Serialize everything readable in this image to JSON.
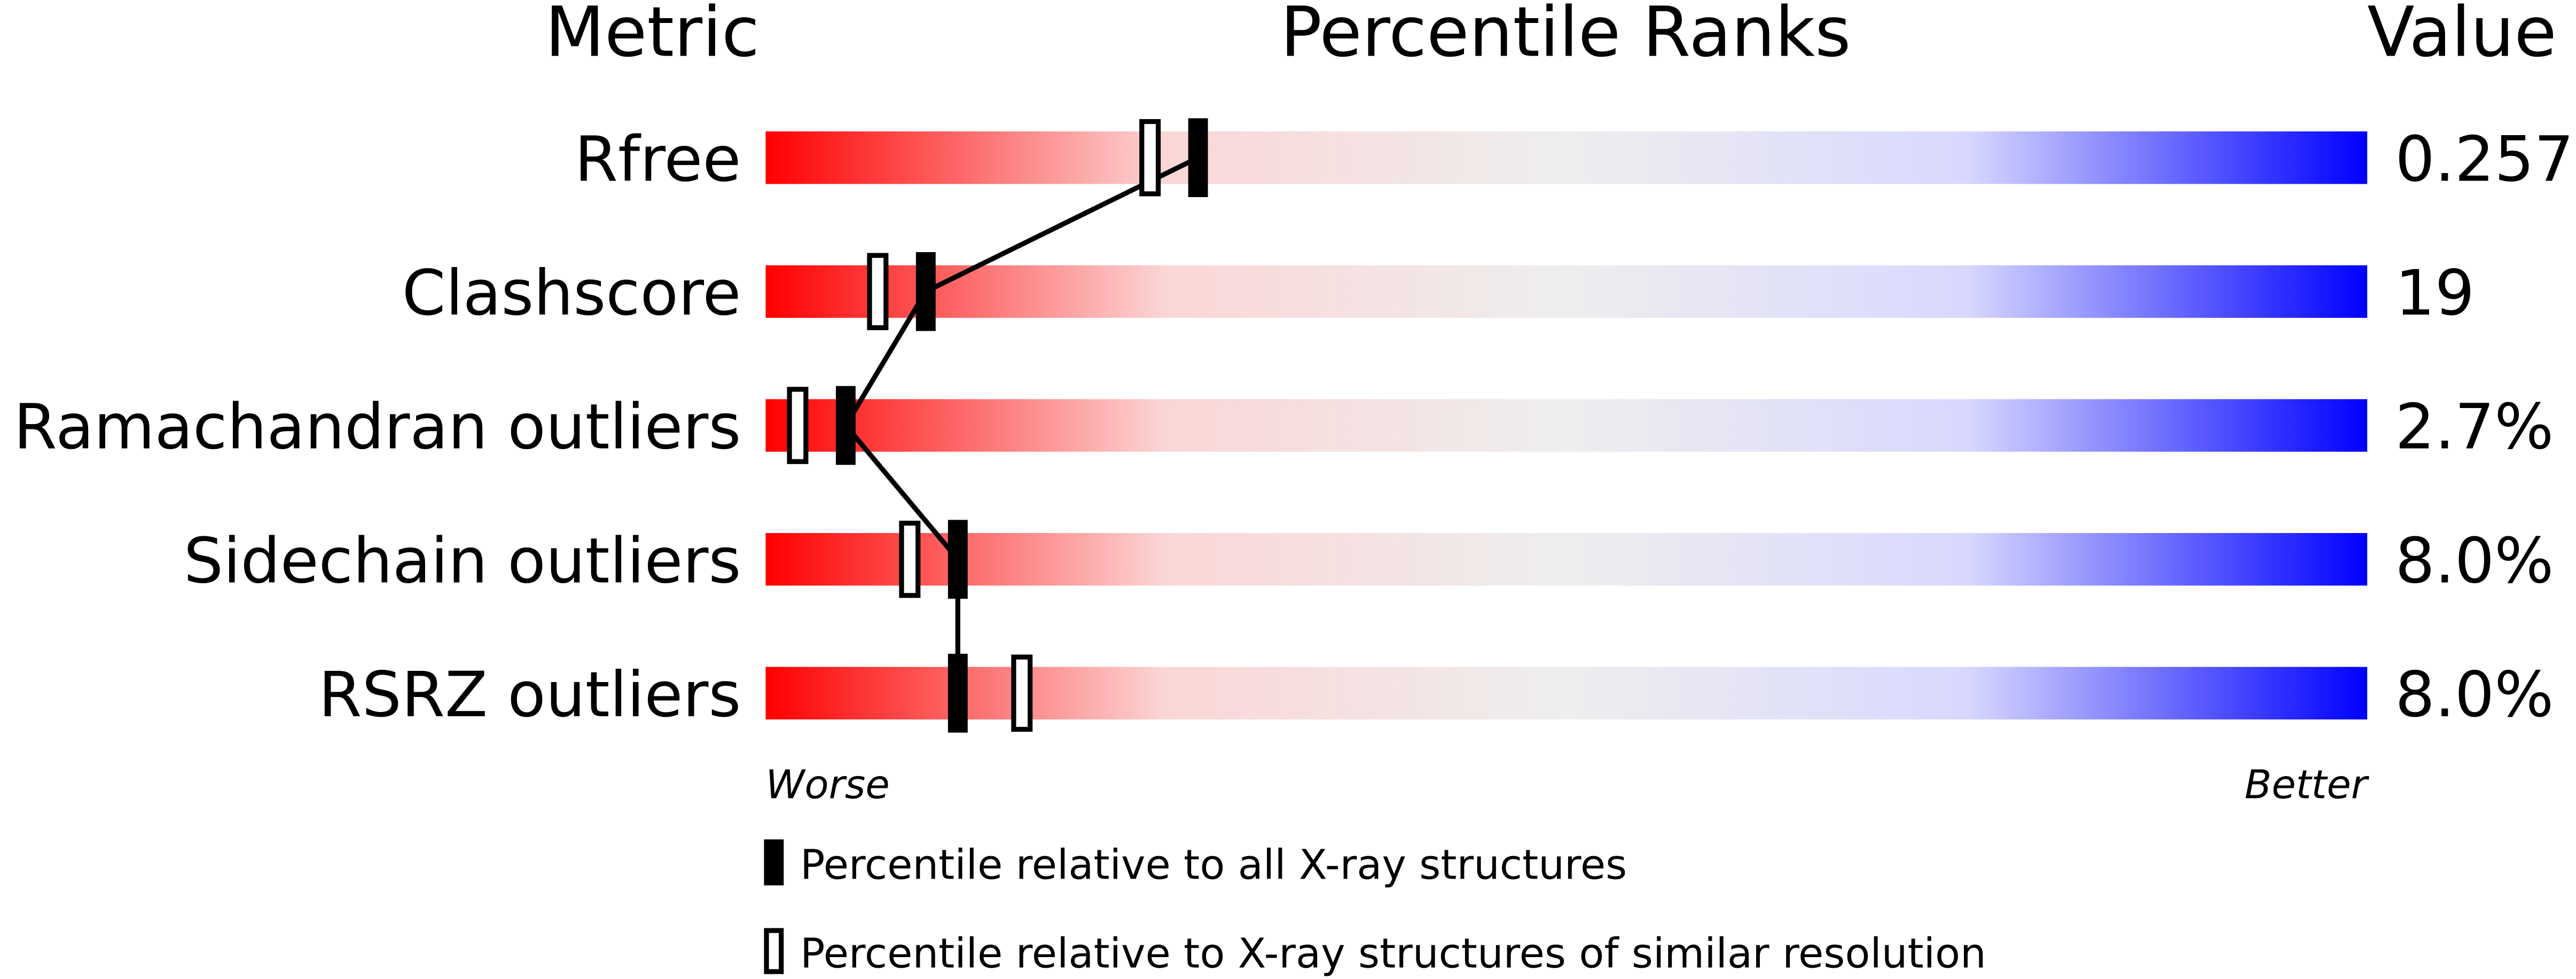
{
  "chart_data": {
    "type": "percentile-slider",
    "headers": {
      "metric": "Metric",
      "ranks": "Percentile Ranks",
      "value": "Value"
    },
    "categories": [
      "Rfree",
      "Clashscore",
      "Ramachandran outliers",
      "Sidechain outliers",
      "RSRZ outliers"
    ],
    "metric_values": [
      "0.257",
      "19",
      "2.7%",
      "8.0%",
      "8.0%"
    ],
    "xlim": [
      0,
      100
    ],
    "worse_label": "Worse",
    "better_label": "Better",
    "gradient": [
      "#ff0000",
      "#fbd6d6",
      "#eeeeee",
      "#d8d8ff",
      "#0000ff"
    ],
    "series": [
      {
        "name": "Percentile relative to all X-ray structures",
        "color": "#000000",
        "marker": "filled",
        "values": [
          27,
          10,
          5,
          12,
          12
        ]
      },
      {
        "name": "Percentile relative to X-ray structures of similar resolution",
        "color": "#000000",
        "marker": "open",
        "values": [
          24,
          7,
          2,
          9,
          16
        ]
      }
    ]
  }
}
